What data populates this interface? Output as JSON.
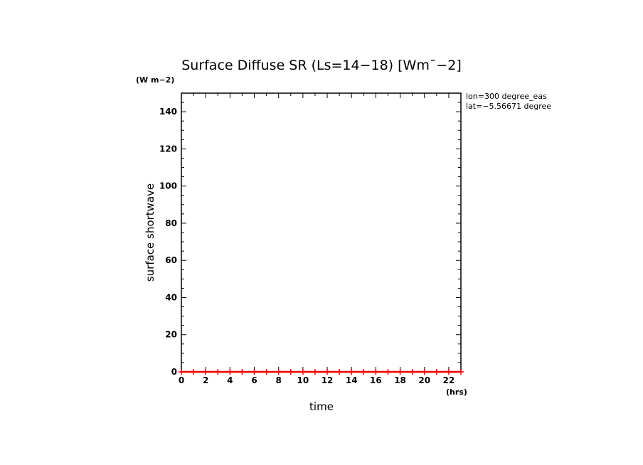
{
  "chart_data": {
    "type": "line",
    "title": "Surface Diffuse SR (Ls=14−18) [Wm¯−2]",
    "xlabel": "time",
    "ylabel": "surface shortwave",
    "x_unit": "(hrs)",
    "y_unit": "(W m−2)",
    "xlim": [
      0,
      23
    ],
    "ylim": [
      0,
      150
    ],
    "x_ticks": [
      "0",
      "2",
      "4",
      "6",
      "8",
      "10",
      "12",
      "14",
      "16",
      "18",
      "20",
      "22"
    ],
    "y_ticks": [
      "0",
      "20",
      "40",
      "60",
      "80",
      "100",
      "120",
      "140"
    ],
    "annotations": [
      "lon=300 degree_eas",
      "lat=−5.56671 degree"
    ],
    "grid": false,
    "series": [
      {
        "color": "#ff0000",
        "marker": "plus",
        "x": [
          0,
          1,
          2,
          3,
          4,
          5,
          6,
          7,
          8,
          9,
          10,
          11,
          12,
          13,
          14,
          15,
          16,
          17,
          18,
          19,
          20,
          21,
          22,
          23
        ],
        "values": [
          0,
          0,
          0,
          0,
          0,
          0,
          0,
          0,
          0,
          0,
          0,
          0,
          0,
          0,
          0,
          0,
          0,
          0,
          0,
          0,
          0,
          0,
          0,
          0
        ]
      }
    ]
  }
}
